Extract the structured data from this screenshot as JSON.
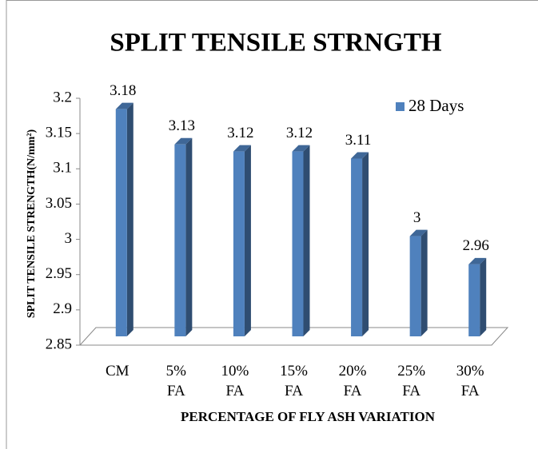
{
  "chart_data": {
    "type": "bar3d",
    "title": "SPLIT TENSILE STRNGTH",
    "x_label": "PERCENTAGE OF FLY ASH VARIATION",
    "y_label": "SPLIT TENSILE STRENGTH(N/mm²)",
    "categories": [
      "CM",
      "5% FA",
      "10% FA",
      "15% FA",
      "20% FA",
      "25% FA",
      "30% FA"
    ],
    "series": [
      {
        "name": "28 Days",
        "color": "#4f81bd",
        "values": [
          3.18,
          3.13,
          3.12,
          3.12,
          3.11,
          3,
          2.96
        ]
      }
    ],
    "ylim": [
      2.85,
      3.2
    ],
    "yticks": [
      2.85,
      2.9,
      2.95,
      3,
      3.05,
      3.1,
      3.15,
      3.2
    ],
    "legend": "top-right",
    "grid": false
  }
}
